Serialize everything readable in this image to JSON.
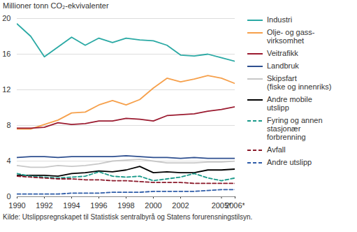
{
  "chart_data": {
    "type": "line",
    "title": "Millioner tonn CO₂-ekvivalenter",
    "caption": "Kilde: Utslippsregnskapet til Statistisk sentralbyrå og Statens forurensningstilsyn.",
    "x": [
      1990,
      1991,
      1992,
      1993,
      1994,
      1995,
      1996,
      1997,
      1998,
      1999,
      2000,
      2001,
      2002,
      2003,
      2004,
      2005,
      2006
    ],
    "xlim": [
      1990,
      2006
    ],
    "xticks": [
      1990,
      1992,
      1994,
      1996,
      1998,
      2000,
      2002,
      {
        "value": 2005,
        "label": "2005*"
      },
      {
        "value": 2006,
        "label": "2006*"
      }
    ],
    "ylim": [
      0,
      20
    ],
    "yticks": [
      0,
      4,
      8,
      12,
      16,
      20
    ],
    "grid": true,
    "legend": "right",
    "series": [
      {
        "name": "Industri",
        "color": "#2aa9a4",
        "line_style": "solid",
        "values": [
          19.4,
          18.0,
          15.7,
          16.8,
          17.9,
          17.0,
          17.8,
          17.3,
          17.8,
          17.6,
          17.5,
          17.0,
          15.9,
          15.8,
          16.0,
          15.6,
          15.2
        ]
      },
      {
        "name": "Olje- og gass-\nvirksomhet",
        "color": "#f6a04b",
        "line_style": "solid",
        "values": [
          7.6,
          7.6,
          8.1,
          8.6,
          9.4,
          9.5,
          10.3,
          10.8,
          10.3,
          10.9,
          12.2,
          13.3,
          12.9,
          13.2,
          13.6,
          13.3,
          12.7
        ]
      },
      {
        "name": "Veitrafikk",
        "color": "#9b1b30",
        "line_style": "solid",
        "values": [
          7.7,
          7.7,
          7.8,
          8.3,
          8.1,
          8.2,
          8.5,
          8.5,
          8.8,
          8.7,
          8.5,
          9.1,
          9.2,
          9.3,
          9.6,
          9.8,
          10.1
        ]
      },
      {
        "name": "Landbruk",
        "color": "#2e4f8f",
        "line_style": "solid",
        "values": [
          4.4,
          4.5,
          4.5,
          4.4,
          4.5,
          4.5,
          4.5,
          4.5,
          4.6,
          4.5,
          4.4,
          4.4,
          4.3,
          4.4,
          4.3,
          4.3,
          4.3
        ]
      },
      {
        "name": "Skipsfart\n(fiske og innenriks)",
        "color": "#c8c8c8",
        "line_style": "solid",
        "values": [
          3.5,
          3.3,
          3.3,
          3.5,
          3.4,
          3.5,
          3.7,
          4.0,
          4.1,
          4.2,
          4.0,
          3.8,
          3.8,
          3.8,
          3.9,
          3.9,
          4.0
        ]
      },
      {
        "name": "Andre mobile\nutslipp",
        "color": "#000000",
        "line_style": "solid",
        "values": [
          2.4,
          2.4,
          2.4,
          2.3,
          2.6,
          2.7,
          2.9,
          2.8,
          3.0,
          3.4,
          2.7,
          2.8,
          2.7,
          2.7,
          3.0,
          3.0,
          3.1
        ]
      },
      {
        "name": "Fyring og annen\nstasjonær\nforbrenning",
        "color": "#1a9a8a",
        "line_style": "dashed",
        "values": [
          2.6,
          2.3,
          2.2,
          2.1,
          2.2,
          2.3,
          2.8,
          2.3,
          2.2,
          2.3,
          1.8,
          2.0,
          2.2,
          2.6,
          2.1,
          1.8,
          2.1
        ]
      },
      {
        "name": "Avfall",
        "color": "#8b1a2b",
        "line_style": "dashed",
        "values": [
          2.3,
          2.2,
          2.1,
          2.0,
          2.0,
          1.9,
          1.9,
          1.8,
          1.8,
          1.7,
          1.6,
          1.6,
          1.6,
          1.5,
          1.5,
          1.5,
          1.5
        ]
      },
      {
        "name": "Andre utslipp",
        "color": "#2e5ca8",
        "line_style": "dashed",
        "values": [
          0.3,
          0.3,
          0.3,
          0.3,
          0.4,
          0.4,
          0.4,
          0.5,
          0.5,
          0.5,
          0.6,
          0.6,
          0.6,
          0.6,
          0.7,
          0.8,
          0.8
        ]
      }
    ]
  }
}
